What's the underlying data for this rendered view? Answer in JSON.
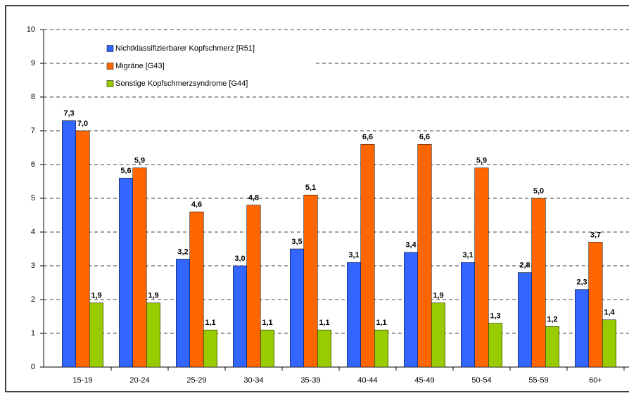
{
  "chart_data": {
    "type": "bar",
    "categories": [
      "15-19",
      "20-24",
      "25-29",
      "30-34",
      "35-39",
      "40-44",
      "45-49",
      "50-54",
      "55-59",
      "60+"
    ],
    "series": [
      {
        "name": "Nichtklassifizierbarer Kopfschmerz [R51]",
        "color": "#3366ff",
        "values": [
          7.3,
          5.6,
          3.2,
          3.0,
          3.5,
          3.1,
          3.4,
          3.1,
          2.8,
          2.3
        ],
        "value_labels": [
          "7,3",
          "5,6",
          "3,2",
          "3,0",
          "3,5",
          "3,1",
          "3,4",
          "3,1",
          "2,8",
          "2,3"
        ]
      },
      {
        "name": "Migräne [G43]",
        "color": "#ff6600",
        "values": [
          7.0,
          5.9,
          4.6,
          4.8,
          5.1,
          6.6,
          6.6,
          5.9,
          5.0,
          3.7
        ],
        "value_labels": [
          "7,0",
          "5,9",
          "4,6",
          "4,8",
          "5,1",
          "6,6",
          "6,6",
          "5,9",
          "5,0",
          "3,7"
        ]
      },
      {
        "name": "Sonstige Kopfschmerzsyndrome [G44]",
        "color": "#99cc00",
        "values": [
          1.9,
          1.9,
          1.1,
          1.1,
          1.1,
          1.1,
          1.9,
          1.3,
          1.2,
          1.4
        ],
        "value_labels": [
          "1,9",
          "1,9",
          "1,1",
          "1,1",
          "1,1",
          "1,1",
          "1,9",
          "1,3",
          "1,2",
          "1,4"
        ]
      }
    ],
    "ylim": [
      0,
      10
    ],
    "yticks": [
      0,
      1,
      2,
      3,
      4,
      5,
      6,
      7,
      8,
      9,
      10
    ],
    "grid": true
  }
}
